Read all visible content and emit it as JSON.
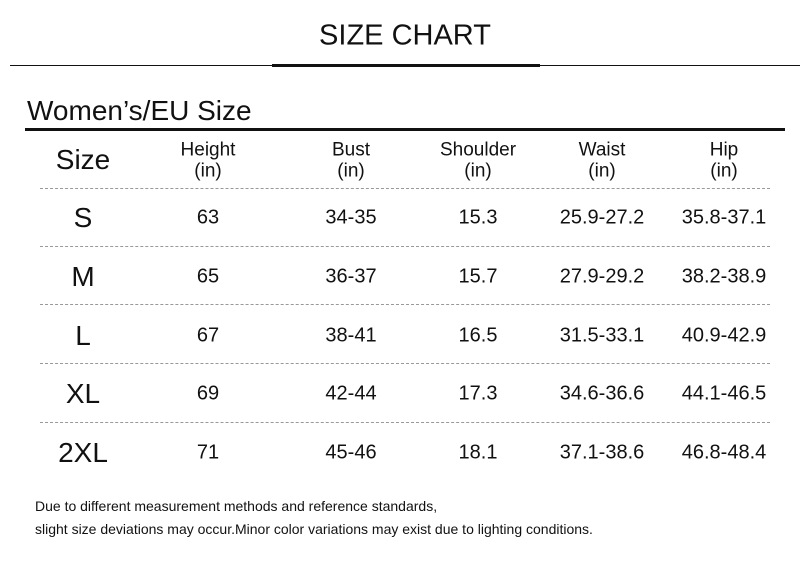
{
  "header": {
    "title": "SIZE CHART"
  },
  "section_title": "Women’s/EU Size",
  "table": {
    "columns": [
      {
        "name": "Size"
      },
      {
        "name": "Height",
        "unit": "(in)"
      },
      {
        "name": "Bust",
        "unit": "(in)"
      },
      {
        "name": "Shoulder",
        "unit": "(in)"
      },
      {
        "name": "Waist",
        "unit": "(in)"
      },
      {
        "name": "Hip",
        "unit": "(in)"
      }
    ],
    "rows": [
      [
        "S",
        "63",
        "34-35",
        "15.3",
        "25.9-27.2",
        "35.8-37.1"
      ],
      [
        "M",
        "65",
        "36-37",
        "15.7",
        "27.9-29.2",
        "38.2-38.9"
      ],
      [
        "L",
        "67",
        "38-41",
        "16.5",
        "31.5-33.1",
        "40.9-42.9"
      ],
      [
        "XL",
        "69",
        "42-44",
        "17.3",
        "34.6-36.6",
        "44.1-46.5"
      ],
      [
        "2XL",
        "71",
        "45-46",
        "18.1",
        "37.1-38.6",
        "46.8-48.4"
      ]
    ]
  },
  "notes": [
    "Due to different measurement methods and reference standards,",
    "slight size deviations may occur.Minor color variations may exist due to lighting conditions."
  ]
}
